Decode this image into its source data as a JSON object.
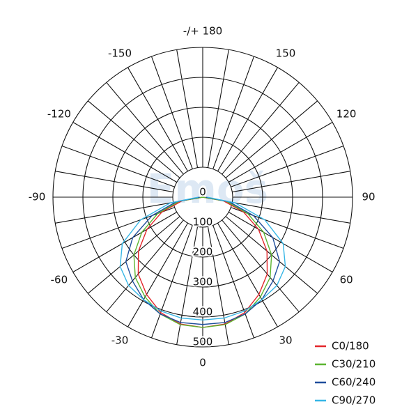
{
  "chart_data": {
    "type": "polar",
    "watermark": "Emoš",
    "angles": [
      -90,
      -80,
      -70,
      -60,
      -50,
      -40,
      -30,
      -20,
      -10,
      0,
      10,
      20,
      30,
      40,
      50,
      60,
      70,
      80,
      90
    ],
    "rlim": [
      0,
      500
    ],
    "rticks": [
      0,
      100,
      200,
      300,
      400,
      500
    ],
    "thetaticks": [
      0,
      30,
      60,
      90,
      120,
      150,
      {
        "value": 180,
        "label": "-/+ 180"
      },
      -150,
      -120,
      -90,
      -60,
      -30
    ],
    "angle_grid_step": 10,
    "legend": "lower right",
    "series": [
      {
        "name": "C0/180",
        "color": "#e3262b",
        "values": [
          0,
          70,
          145,
          215,
          280,
          335,
          375,
          410,
          430,
          435,
          430,
          410,
          375,
          335,
          280,
          215,
          145,
          70,
          0
        ]
      },
      {
        "name": "C30/210",
        "color": "#5cb531",
        "values": [
          0,
          80,
          160,
          235,
          300,
          350,
          385,
          415,
          432,
          435,
          432,
          415,
          385,
          350,
          300,
          235,
          160,
          80,
          0
        ]
      },
      {
        "name": "C60/240",
        "color": "#1f4e9c",
        "values": [
          10,
          90,
          180,
          270,
          335,
          365,
          395,
          415,
          425,
          425,
          425,
          415,
          395,
          365,
          335,
          270,
          180,
          90,
          10
        ]
      },
      {
        "name": "C90/270",
        "color": "#37b6e6",
        "values": [
          15,
          110,
          220,
          310,
          360,
          385,
          395,
          405,
          410,
          410,
          410,
          405,
          395,
          385,
          360,
          310,
          220,
          110,
          15
        ]
      }
    ]
  }
}
